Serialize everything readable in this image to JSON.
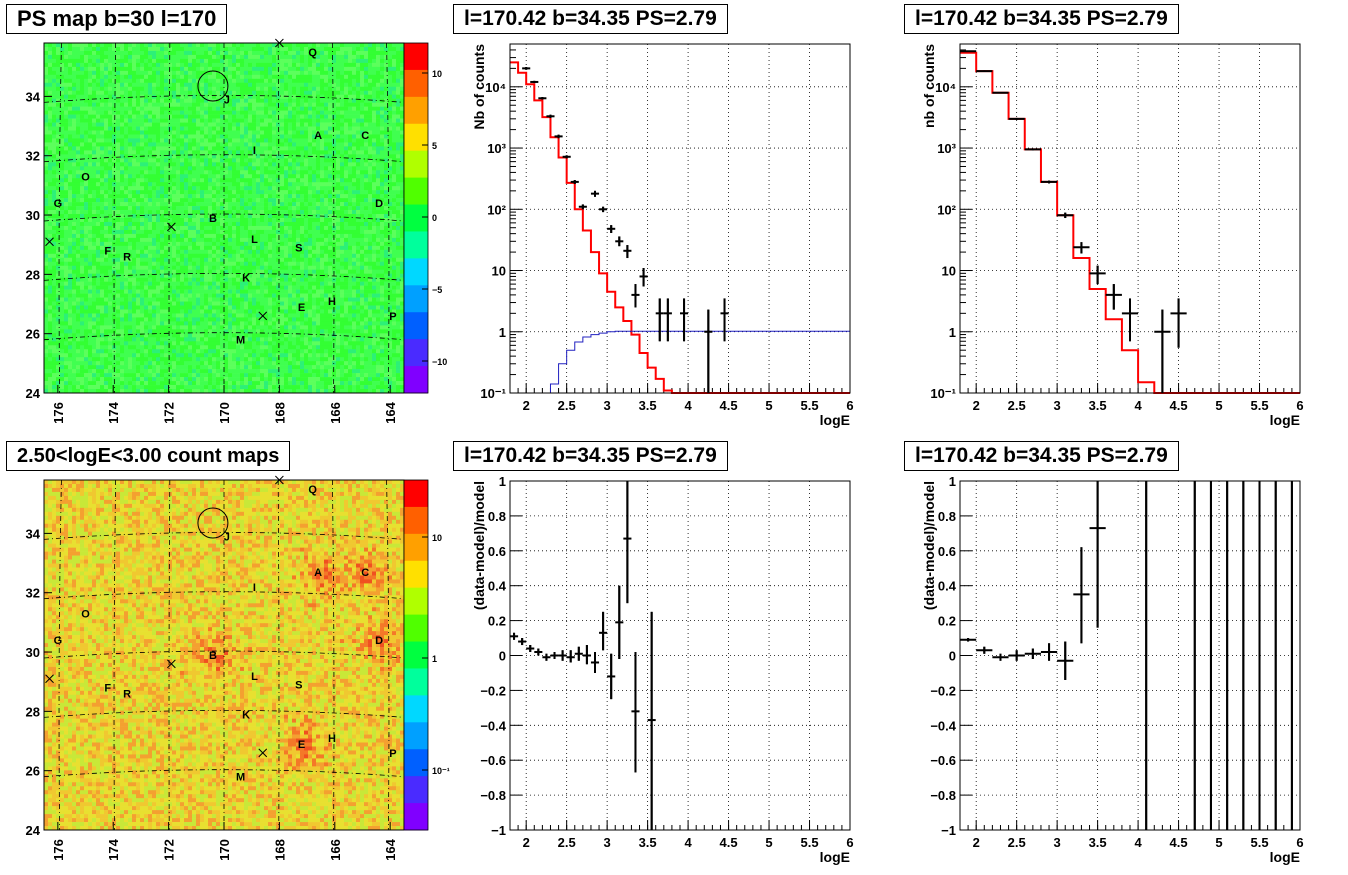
{
  "panels": {
    "ps_map": {
      "title": "PS map b=30 l=170"
    },
    "count_map": {
      "title": "2.50<logE<3.00 count maps"
    },
    "spectrum_a": {
      "title": "l=170.42 b=34.35 PS=2.79"
    },
    "spectrum_b": {
      "title": "l=170.42 b=34.35 PS=2.79"
    },
    "residual_a": {
      "title": "l=170.42 b=34.35 PS=2.79"
    },
    "residual_b": {
      "title": "l=170.42 b=34.35 PS=2.79"
    }
  },
  "chart_data": [
    {
      "type": "heatmap",
      "id": "ps_map",
      "title": "PS map b=30 l=170",
      "xlabel": "",
      "ylabel": "",
      "xlim": [
        176.5,
        163.5
      ],
      "ylim": [
        24,
        35.8
      ],
      "x_ticks": [
        176,
        174,
        172,
        170,
        168,
        166,
        164
      ],
      "y_ticks": [
        24,
        26,
        28,
        30,
        32,
        34
      ],
      "colorbar": {
        "ticks": [
          "10",
          "5",
          "0",
          "−5",
          "−10"
        ],
        "range": [
          -12,
          12
        ],
        "colors": [
          "#8000ff",
          "#4a2bff",
          "#0060ff",
          "#00a0ff",
          "#00d8ff",
          "#00ff9c",
          "#00ff40",
          "#50ff00",
          "#b0ff00",
          "#ffe000",
          "#ffa000",
          "#ff6000",
          "#ff0000"
        ]
      },
      "base_color": "#33ff33",
      "sources": [
        {
          "label": "Q",
          "l": 166.8,
          "b": 35.5
        },
        {
          "label": "J",
          "l": 169.9,
          "b": 33.9
        },
        {
          "label": "A",
          "l": 166.6,
          "b": 32.7
        },
        {
          "label": "C",
          "l": 164.9,
          "b": 32.7
        },
        {
          "label": "I",
          "l": 168.9,
          "b": 32.2
        },
        {
          "label": "O",
          "l": 175.0,
          "b": 31.3
        },
        {
          "label": "G",
          "l": 176.0,
          "b": 30.4
        },
        {
          "label": "D",
          "l": 164.4,
          "b": 30.4
        },
        {
          "label": "B",
          "l": 170.4,
          "b": 29.9
        },
        {
          "label": "L",
          "l": 168.9,
          "b": 29.2
        },
        {
          "label": "S",
          "l": 167.3,
          "b": 28.9
        },
        {
          "label": "F",
          "l": 174.2,
          "b": 28.8
        },
        {
          "label": "R",
          "l": 173.5,
          "b": 28.6
        },
        {
          "label": "K",
          "l": 169.2,
          "b": 27.9
        },
        {
          "label": "H",
          "l": 166.1,
          "b": 27.1
        },
        {
          "label": "E",
          "l": 167.2,
          "b": 26.9
        },
        {
          "label": "P",
          "l": 163.9,
          "b": 26.6
        },
        {
          "label": "M",
          "l": 169.4,
          "b": 25.8
        }
      ],
      "crosses": [
        {
          "l": 168.0,
          "b": 35.8
        },
        {
          "l": 171.9,
          "b": 29.6
        },
        {
          "l": 176.3,
          "b": 29.1
        },
        {
          "l": 168.6,
          "b": 26.6
        }
      ],
      "circle": {
        "l": 170.4,
        "b": 34.35
      }
    },
    {
      "type": "heatmap",
      "id": "count_map",
      "title": "2.50<logE<3.00 count maps",
      "xlabel": "",
      "ylabel": "",
      "xlim": [
        176.5,
        163.5
      ],
      "ylim": [
        24,
        35.8
      ],
      "x_ticks": [
        176,
        174,
        172,
        170,
        168,
        166,
        164
      ],
      "y_ticks": [
        24,
        26,
        28,
        30,
        32,
        34
      ],
      "colorbar": {
        "ticks": [
          "10",
          "1",
          "10⁻¹"
        ],
        "scale": "log",
        "colors": [
          "#8000ff",
          "#4a2bff",
          "#0060ff",
          "#00a0ff",
          "#00d8ff",
          "#00ff9c",
          "#00ff40",
          "#50ff00",
          "#b0ff00",
          "#ffe000",
          "#ffa000",
          "#ff6000",
          "#ff0000"
        ]
      },
      "base_color": "#e8e030",
      "hotspots": [
        "A",
        "C",
        "B",
        "E",
        "D"
      ]
    },
    {
      "type": "line",
      "id": "spectrum_a",
      "title": "l=170.42 b=34.35 PS=2.79",
      "xlabel": "logE",
      "ylabel": "Nb of counts",
      "xlim": [
        1.8,
        6.0
      ],
      "ylim": [
        0.1,
        50000
      ],
      "yscale": "log",
      "x_ticks": [
        "2",
        "2.5",
        "3",
        "3.5",
        "4",
        "4.5",
        "5",
        "5.5",
        "6"
      ],
      "y_ticks": [
        {
          "v": 0.1,
          "t": "10⁻¹"
        },
        {
          "v": 1,
          "t": "1"
        },
        {
          "v": 10,
          "t": "10"
        },
        {
          "v": 100,
          "t": "10²"
        },
        {
          "v": 1000,
          "t": "10³"
        },
        {
          "v": 10000,
          "t": "10⁴"
        }
      ],
      "grid": true,
      "series": [
        {
          "style": "step",
          "color": "#ff0000",
          "edges": [
            1.8,
            1.9,
            2.0,
            2.1,
            2.2,
            2.3,
            2.4,
            2.5,
            2.6,
            2.7,
            2.8,
            2.9,
            3.0,
            3.1,
            3.2,
            3.3,
            3.4,
            3.5,
            3.6,
            3.7,
            3.8,
            3.9,
            4.0,
            6.0
          ],
          "values": [
            25000,
            17000,
            11000,
            6000,
            3200,
            1500,
            700,
            270,
            100,
            45,
            20,
            9,
            4.5,
            2.5,
            1.5,
            0.9,
            0.45,
            0.26,
            0.17,
            0.11,
            0.1,
            0.1,
            0.1
          ]
        },
        {
          "style": "step",
          "color": "#2020c0",
          "edges": [
            1.8,
            2.3,
            2.4,
            2.5,
            2.6,
            2.7,
            2.8,
            2.9,
            3.0,
            3.1,
            6.0
          ],
          "values": [
            0.1,
            0.14,
            0.3,
            0.5,
            0.68,
            0.82,
            0.9,
            0.95,
            1.0,
            1.02
          ]
        },
        {
          "style": "errorbars",
          "color": "#000000",
          "points": [
            {
              "x": 2.0,
              "y": 20000,
              "ylo": 19000,
              "yhi": 21000,
              "dx": 0.05
            },
            {
              "x": 2.1,
              "y": 12000,
              "ylo": 11500,
              "yhi": 12500,
              "dx": 0.05
            },
            {
              "x": 2.2,
              "y": 6500,
              "ylo": 6200,
              "yhi": 6800,
              "dx": 0.05
            },
            {
              "x": 2.3,
              "y": 3300,
              "ylo": 3100,
              "yhi": 3500,
              "dx": 0.05
            },
            {
              "x": 2.4,
              "y": 1550,
              "ylo": 1450,
              "yhi": 1650,
              "dx": 0.05
            },
            {
              "x": 2.5,
              "y": 720,
              "ylo": 680,
              "yhi": 760,
              "dx": 0.05
            },
            {
              "x": 2.6,
              "y": 280,
              "ylo": 260,
              "yhi": 300,
              "dx": 0.05
            },
            {
              "x": 2.7,
              "y": 110,
              "ylo": 100,
              "yhi": 120,
              "dx": 0.05
            },
            {
              "x": 2.85,
              "y": 180,
              "ylo": 160,
              "yhi": 200,
              "dx": 0.05
            },
            {
              "x": 2.95,
              "y": 100,
              "ylo": 90,
              "yhi": 110,
              "dx": 0.05
            },
            {
              "x": 3.05,
              "y": 48,
              "ylo": 41,
              "yhi": 55,
              "dx": 0.05
            },
            {
              "x": 3.15,
              "y": 30,
              "ylo": 25,
              "yhi": 36,
              "dx": 0.05
            },
            {
              "x": 3.25,
              "y": 21,
              "ylo": 16,
              "yhi": 26,
              "dx": 0.05
            },
            {
              "x": 3.35,
              "y": 4,
              "ylo": 2.5,
              "yhi": 6,
              "dx": 0.05
            },
            {
              "x": 3.45,
              "y": 8,
              "ylo": 5.5,
              "yhi": 11,
              "dx": 0.05
            },
            {
              "x": 3.65,
              "y": 2,
              "ylo": 0.7,
              "yhi": 3.5,
              "dx": 0.05
            },
            {
              "x": 3.75,
              "y": 2,
              "ylo": 0.7,
              "yhi": 3.5,
              "dx": 0.05
            },
            {
              "x": 3.95,
              "y": 2,
              "ylo": 0.7,
              "yhi": 3.5,
              "dx": 0.05
            },
            {
              "x": 4.25,
              "y": 1,
              "ylo": 0.1,
              "yhi": 2.3,
              "dx": 0.05
            },
            {
              "x": 4.45,
              "y": 2,
              "ylo": 0.7,
              "yhi": 3.5,
              "dx": 0.05
            }
          ]
        }
      ]
    },
    {
      "type": "line",
      "id": "spectrum_b",
      "title": "l=170.42 b=34.35 PS=2.79",
      "xlabel": "logE",
      "ylabel": "nb of counts",
      "xlim": [
        1.8,
        6.0
      ],
      "ylim": [
        0.1,
        50000
      ],
      "yscale": "log",
      "x_ticks": [
        "2",
        "2.5",
        "3",
        "3.5",
        "4",
        "4.5",
        "5",
        "5.5",
        "6"
      ],
      "y_ticks": [
        {
          "v": 0.1,
          "t": "10⁻¹"
        },
        {
          "v": 1,
          "t": "1"
        },
        {
          "v": 10,
          "t": "10"
        },
        {
          "v": 100,
          "t": "10²"
        },
        {
          "v": 1000,
          "t": "10³"
        },
        {
          "v": 10000,
          "t": "10⁴"
        }
      ],
      "grid": true,
      "series": [
        {
          "style": "step",
          "color": "#ff0000",
          "edges": [
            1.8,
            2.0,
            2.2,
            2.4,
            2.6,
            2.8,
            3.0,
            3.2,
            3.4,
            3.6,
            3.8,
            4.0,
            4.2,
            6.0
          ],
          "values": [
            36000,
            18000,
            8000,
            3000,
            950,
            280,
            80,
            16,
            5,
            1.6,
            0.5,
            0.15,
            0.1
          ]
        },
        {
          "style": "errorbars",
          "color": "#000000",
          "points": [
            {
              "x": 1.9,
              "y": 38000,
              "ylo": 37000,
              "yhi": 39000,
              "dx": 0.1
            },
            {
              "x": 2.1,
              "y": 18000,
              "ylo": 17500,
              "yhi": 18500,
              "dx": 0.1
            },
            {
              "x": 2.3,
              "y": 8000,
              "ylo": 7800,
              "yhi": 8200,
              "dx": 0.1
            },
            {
              "x": 2.5,
              "y": 3000,
              "ylo": 2900,
              "yhi": 3100,
              "dx": 0.1
            },
            {
              "x": 2.7,
              "y": 950,
              "ylo": 920,
              "yhi": 980,
              "dx": 0.1
            },
            {
              "x": 2.9,
              "y": 280,
              "ylo": 265,
              "yhi": 295,
              "dx": 0.1
            },
            {
              "x": 3.1,
              "y": 80,
              "ylo": 72,
              "yhi": 88,
              "dx": 0.1
            },
            {
              "x": 3.3,
              "y": 24,
              "ylo": 19,
              "yhi": 29,
              "dx": 0.1
            },
            {
              "x": 3.5,
              "y": 9,
              "ylo": 6,
              "yhi": 12,
              "dx": 0.1
            },
            {
              "x": 3.7,
              "y": 4,
              "ylo": 2.3,
              "yhi": 6,
              "dx": 0.1
            },
            {
              "x": 3.9,
              "y": 2,
              "ylo": 0.7,
              "yhi": 3.5,
              "dx": 0.1
            },
            {
              "x": 4.3,
              "y": 1,
              "ylo": 0.1,
              "yhi": 2.3,
              "dx": 0.1
            },
            {
              "x": 4.5,
              "y": 2,
              "ylo": 0.55,
              "yhi": 3.5,
              "dx": 0.1
            }
          ]
        }
      ]
    },
    {
      "type": "scatter",
      "id": "residual_a",
      "title": "l=170.42 b=34.35 PS=2.79",
      "xlabel": "logE",
      "ylabel": "(data-model)/model",
      "xlim": [
        1.8,
        6.0
      ],
      "ylim": [
        -1,
        1
      ],
      "x_ticks": [
        "2",
        "2.5",
        "3",
        "3.5",
        "4",
        "4.5",
        "5",
        "5.5",
        "6"
      ],
      "y_ticks": [
        "−1",
        "−0.8",
        "−0.6",
        "−0.4",
        "−0.2",
        "0",
        "0.2",
        "0.4",
        "0.6",
        "0.8",
        "1"
      ],
      "grid": true,
      "points": [
        {
          "x": 1.85,
          "y": 0.11,
          "ylo": 0.09,
          "yhi": 0.13,
          "dx": 0.05
        },
        {
          "x": 1.95,
          "y": 0.08,
          "ylo": 0.06,
          "yhi": 0.1,
          "dx": 0.05
        },
        {
          "x": 2.05,
          "y": 0.04,
          "ylo": 0.02,
          "yhi": 0.06,
          "dx": 0.05
        },
        {
          "x": 2.15,
          "y": 0.02,
          "ylo": 0.0,
          "yhi": 0.04,
          "dx": 0.05
        },
        {
          "x": 2.25,
          "y": -0.01,
          "ylo": -0.03,
          "yhi": 0.01,
          "dx": 0.05
        },
        {
          "x": 2.35,
          "y": 0.0,
          "ylo": -0.02,
          "yhi": 0.02,
          "dx": 0.05
        },
        {
          "x": 2.45,
          "y": 0.0,
          "ylo": -0.03,
          "yhi": 0.03,
          "dx": 0.05
        },
        {
          "x": 2.55,
          "y": -0.01,
          "ylo": -0.04,
          "yhi": 0.03,
          "dx": 0.05
        },
        {
          "x": 2.65,
          "y": 0.01,
          "ylo": -0.03,
          "yhi": 0.05,
          "dx": 0.05
        },
        {
          "x": 2.75,
          "y": 0.0,
          "ylo": -0.05,
          "yhi": 0.06,
          "dx": 0.05
        },
        {
          "x": 2.85,
          "y": -0.04,
          "ylo": -0.1,
          "yhi": 0.02,
          "dx": 0.05
        },
        {
          "x": 2.95,
          "y": 0.13,
          "ylo": 0.03,
          "yhi": 0.25,
          "dx": 0.05
        },
        {
          "x": 3.05,
          "y": -0.12,
          "ylo": -0.25,
          "yhi": 0.01,
          "dx": 0.05
        },
        {
          "x": 3.15,
          "y": 0.19,
          "ylo": -0.02,
          "yhi": 0.4,
          "dx": 0.05
        },
        {
          "x": 3.25,
          "y": 0.67,
          "ylo": 0.3,
          "yhi": 1.0,
          "dx": 0.05
        },
        {
          "x": 3.35,
          "y": -0.32,
          "ylo": -0.67,
          "yhi": 0.02,
          "dx": 0.05
        },
        {
          "x": 3.55,
          "y": -0.37,
          "ylo": -1.0,
          "yhi": 0.25,
          "dx": 0.05
        }
      ]
    },
    {
      "type": "scatter",
      "id": "residual_b",
      "title": "l=170.42 b=34.35 PS=2.79",
      "xlabel": "logE",
      "ylabel": "(data-model)/model",
      "xlim": [
        1.8,
        6.0
      ],
      "ylim": [
        -1,
        1
      ],
      "x_ticks": [
        "2",
        "2.5",
        "3",
        "3.5",
        "4",
        "4.5",
        "5",
        "5.5",
        "6"
      ],
      "y_ticks": [
        "−1",
        "−0.8",
        "−0.6",
        "−0.4",
        "−0.2",
        "0",
        "0.2",
        "0.4",
        "0.6",
        "0.8",
        "1"
      ],
      "grid": true,
      "points": [
        {
          "x": 1.9,
          "y": 0.09,
          "ylo": 0.08,
          "yhi": 0.1,
          "dx": 0.1
        },
        {
          "x": 2.1,
          "y": 0.03,
          "ylo": 0.01,
          "yhi": 0.05,
          "dx": 0.1
        },
        {
          "x": 2.3,
          "y": -0.01,
          "ylo": -0.03,
          "yhi": 0.01,
          "dx": 0.1
        },
        {
          "x": 2.5,
          "y": 0.0,
          "ylo": -0.03,
          "yhi": 0.03,
          "dx": 0.1
        },
        {
          "x": 2.7,
          "y": 0.01,
          "ylo": -0.02,
          "yhi": 0.04,
          "dx": 0.1
        },
        {
          "x": 2.9,
          "y": 0.02,
          "ylo": -0.03,
          "yhi": 0.07,
          "dx": 0.1
        },
        {
          "x": 3.1,
          "y": -0.03,
          "ylo": -0.14,
          "yhi": 0.08,
          "dx": 0.1
        },
        {
          "x": 3.3,
          "y": 0.35,
          "ylo": 0.07,
          "yhi": 0.62,
          "dx": 0.1
        },
        {
          "x": 3.5,
          "y": 0.73,
          "ylo": 0.16,
          "yhi": 1.0,
          "dx": 0.1
        },
        {
          "x": 4.1,
          "y": 0,
          "ylo": -1,
          "yhi": 1,
          "dx": 0
        },
        {
          "x": 4.7,
          "y": 0,
          "ylo": -1,
          "yhi": 1,
          "dx": 0
        },
        {
          "x": 4.9,
          "y": 0,
          "ylo": -1,
          "yhi": 1,
          "dx": 0
        },
        {
          "x": 5.1,
          "y": 0,
          "ylo": -1,
          "yhi": 1,
          "dx": 0
        },
        {
          "x": 5.3,
          "y": 0,
          "ylo": -1,
          "yhi": 1,
          "dx": 0
        },
        {
          "x": 5.5,
          "y": 0,
          "ylo": -1,
          "yhi": 1,
          "dx": 0
        },
        {
          "x": 5.7,
          "y": 0,
          "ylo": -1,
          "yhi": 1,
          "dx": 0
        },
        {
          "x": 5.9,
          "y": 0,
          "ylo": -1,
          "yhi": 1,
          "dx": 0
        }
      ]
    }
  ]
}
